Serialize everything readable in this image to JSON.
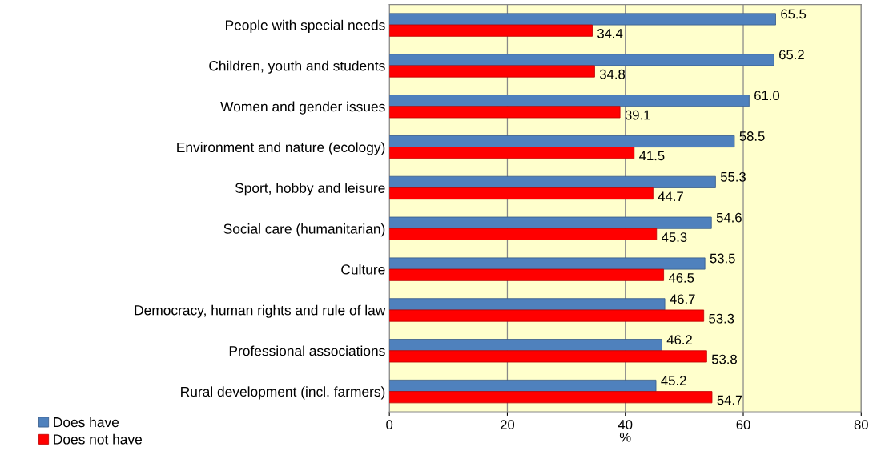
{
  "chart_data": {
    "type": "bar",
    "orientation": "horizontal",
    "xlabel": "%",
    "categories": [
      "People with special needs",
      "Children, youth and students",
      "Women and gender issues",
      "Environment and nature (ecology)",
      "Sport, hobby and leisure",
      "Social care (humanitarian)",
      "Culture",
      "Democracy, human rights and rule of law",
      "Professional associations",
      "Rural development (incl. farmers)"
    ],
    "series": [
      {
        "name": "Does have",
        "color": "#4f81bd",
        "values": [
          65.5,
          65.2,
          61.0,
          58.5,
          55.3,
          54.6,
          53.5,
          46.7,
          46.2,
          45.2
        ],
        "value_labels": [
          "65.5",
          "65.2",
          "61.0",
          "58.5",
          "55.3",
          "54.6",
          "53.5",
          "46.7",
          "46.2",
          "45.2"
        ]
      },
      {
        "name": "Does not have",
        "color": "#ff0000",
        "values": [
          34.4,
          34.8,
          39.1,
          41.5,
          44.7,
          45.3,
          46.5,
          53.3,
          53.8,
          54.7
        ],
        "value_labels": [
          "34.4",
          "34.8",
          "39.1",
          "41.5",
          "44.7",
          "45.3",
          "46.5",
          "53.3",
          "53.8",
          "54.7"
        ]
      }
    ],
    "xlim": [
      0,
      80
    ],
    "xticks": [
      0,
      20,
      40,
      60,
      80
    ],
    "grid": "x",
    "legend": "bottom left"
  }
}
